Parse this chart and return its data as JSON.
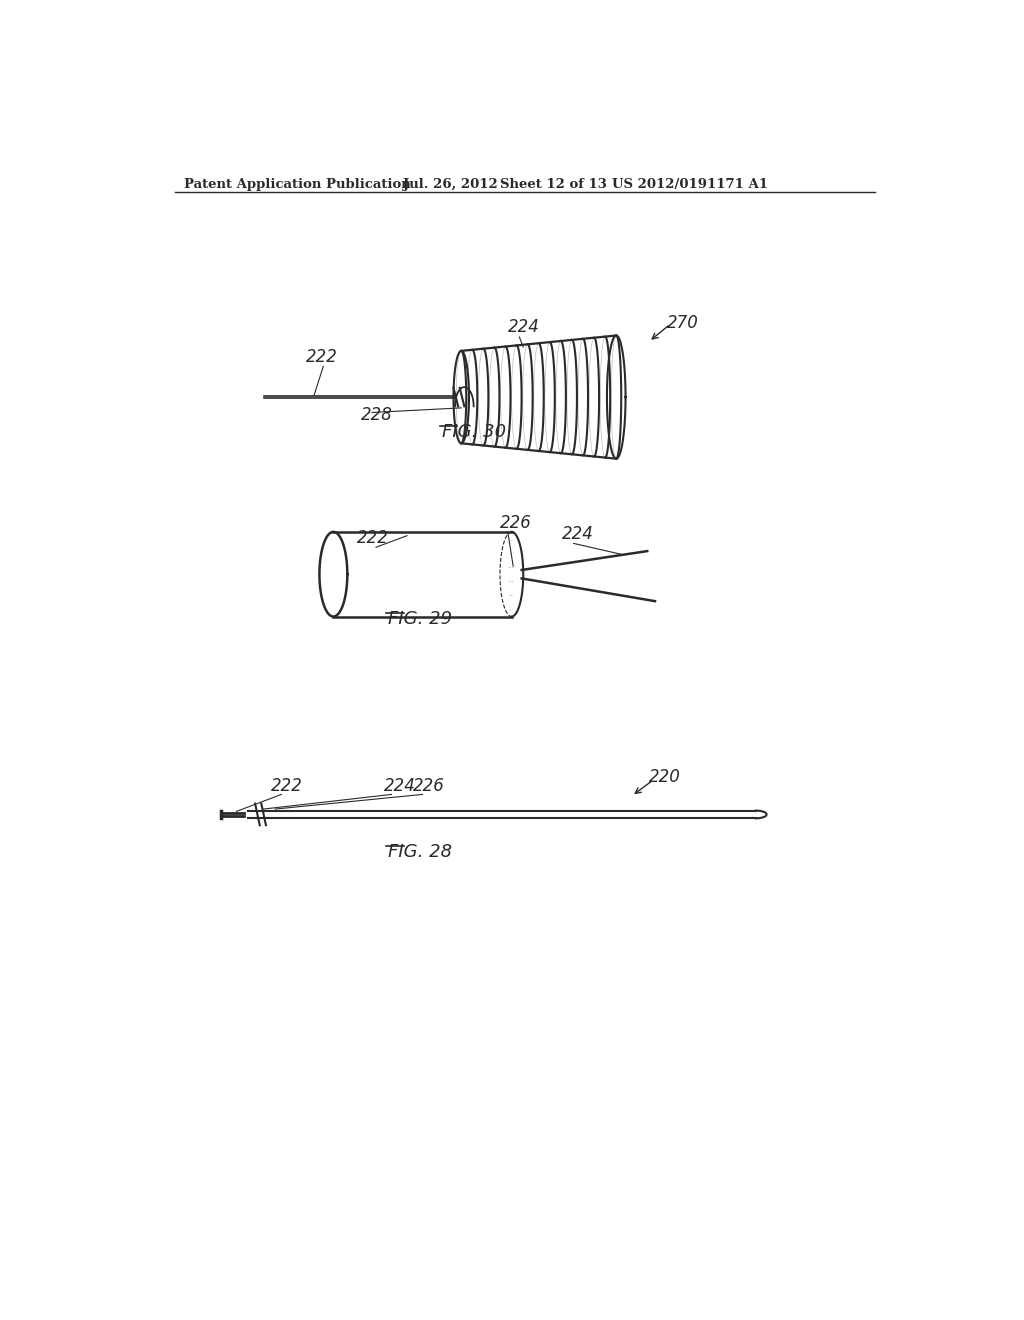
{
  "bg_color": "#ffffff",
  "header_text": "Patent Application Publication",
  "header_date": "Jul. 26, 2012",
  "header_sheet": "Sheet 12 of 13",
  "header_patent": "US 2012/0191171 A1",
  "fig30_label": "FIG. 30",
  "fig29_label": "FIG. 29",
  "fig28_label": "FIG. 28",
  "lc": "#2a2a2a",
  "tc": "#2a2a2a"
}
